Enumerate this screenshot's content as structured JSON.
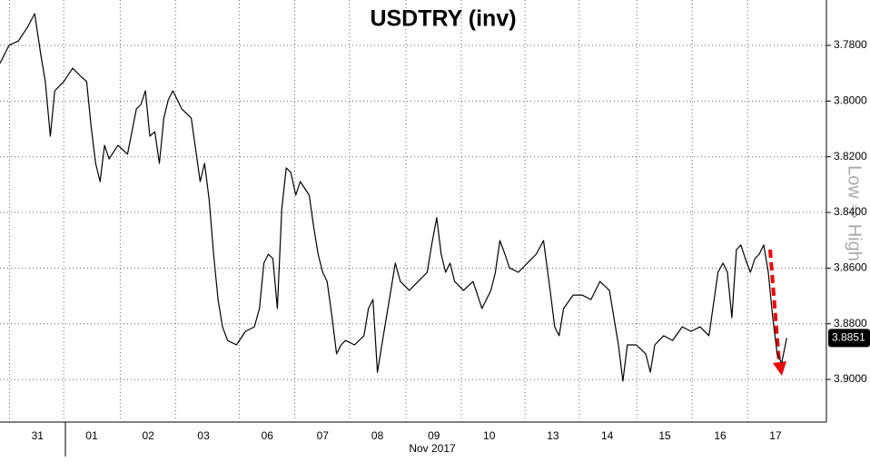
{
  "chart_data": {
    "type": "line",
    "title": "USDTRY (inv)",
    "axis_note": "Low ⇒ High",
    "x_caption": "Nov 2017",
    "invert_y": true,
    "grid": true,
    "color": "#000000",
    "ylim": [
      3.7637,
      3.9153
    ],
    "yticks": [
      {
        "value": 3.78,
        "label": "3.7800"
      },
      {
        "value": 3.8,
        "label": "3.8000"
      },
      {
        "value": 3.82,
        "label": "3.8200"
      },
      {
        "value": 3.84,
        "label": "3.8400"
      },
      {
        "value": 3.86,
        "label": "3.8600"
      },
      {
        "value": 3.88,
        "label": "3.8800"
      },
      {
        "value": 3.9,
        "label": "3.9000"
      }
    ],
    "xlim": [
      -0.18,
      14.6
    ],
    "xticks": [
      {
        "value": 0.49,
        "label": "31"
      },
      {
        "value": 1.46,
        "label": "01"
      },
      {
        "value": 2.47,
        "label": "02"
      },
      {
        "value": 3.46,
        "label": "03"
      },
      {
        "value": 4.6,
        "label": "06"
      },
      {
        "value": 5.59,
        "label": "07"
      },
      {
        "value": 6.57,
        "label": "08"
      },
      {
        "value": 7.58,
        "label": "09"
      },
      {
        "value": 8.57,
        "label": "10"
      },
      {
        "value": 9.71,
        "label": "13"
      },
      {
        "value": 10.68,
        "label": "14"
      },
      {
        "value": 11.71,
        "label": "15"
      },
      {
        "value": 12.7,
        "label": "16"
      },
      {
        "value": 13.69,
        "label": "17"
      }
    ],
    "last_price": 3.8851,
    "x": [
      -0.18,
      -0.02,
      0.15,
      0.31,
      0.44,
      0.55,
      0.63,
      0.72,
      0.8,
      0.96,
      1.12,
      1.28,
      1.37,
      1.45,
      1.53,
      1.61,
      1.69,
      1.77,
      1.93,
      2.1,
      2.26,
      2.34,
      2.42,
      2.5,
      2.59,
      2.67,
      2.75,
      2.83,
      2.91,
      3.07,
      3.24,
      3.4,
      3.48,
      3.56,
      3.64,
      3.72,
      3.8,
      3.89,
      4.05,
      4.21,
      4.37,
      4.46,
      4.54,
      4.62,
      4.7,
      4.78,
      4.86,
      4.94,
      5.02,
      5.11,
      5.19,
      5.35,
      5.43,
      5.51,
      5.59,
      5.67,
      5.76,
      5.84,
      5.92,
      6.0,
      6.16,
      6.33,
      6.41,
      6.49,
      6.57,
      6.65,
      6.73,
      6.81,
      6.89,
      6.98,
      7.14,
      7.3,
      7.46,
      7.54,
      7.63,
      7.71,
      7.79,
      7.87,
      7.95,
      8.11,
      8.28,
      8.44,
      8.6,
      8.68,
      8.76,
      8.85,
      8.93,
      9.09,
      9.25,
      9.41,
      9.54,
      9.66,
      9.74,
      9.82,
      9.9,
      10.07,
      10.23,
      10.39,
      10.55,
      10.72,
      10.8,
      10.88,
      10.96,
      11.04,
      11.2,
      11.37,
      11.45,
      11.53,
      11.69,
      11.85,
      12.02,
      12.18,
      12.34,
      12.5,
      12.66,
      12.75,
      12.83,
      12.91,
      12.99,
      13.07,
      13.15,
      13.24,
      13.32,
      13.4,
      13.48,
      13.56,
      13.64,
      13.72,
      13.8,
      13.89
    ],
    "values": [
      3.7865,
      3.78,
      3.7784,
      3.7735,
      3.7686,
      3.7833,
      3.793,
      3.8126,
      3.7963,
      3.793,
      3.7882,
      3.7914,
      3.793,
      3.8093,
      3.8224,
      3.8289,
      3.8159,
      3.8208,
      3.8159,
      3.8191,
      3.8028,
      3.8012,
      3.7963,
      3.8126,
      3.811,
      3.8224,
      3.8061,
      3.7996,
      3.7963,
      3.8028,
      3.8061,
      3.8289,
      3.8224,
      3.8354,
      3.855,
      3.8713,
      3.8811,
      3.886,
      3.8876,
      3.8827,
      3.8811,
      3.8745,
      3.8582,
      3.855,
      3.8566,
      3.8745,
      3.8387,
      3.824,
      3.8256,
      3.8338,
      3.8289,
      3.8338,
      3.8452,
      3.855,
      3.8615,
      3.8648,
      3.8778,
      3.8908,
      3.8876,
      3.886,
      3.8876,
      3.8843,
      3.8745,
      3.8713,
      3.8974,
      3.8876,
      3.8778,
      3.868,
      3.8582,
      3.8648,
      3.868,
      3.8648,
      3.8615,
      3.8517,
      3.8419,
      3.855,
      3.8615,
      3.8582,
      3.8648,
      3.868,
      3.8648,
      3.8745,
      3.868,
      3.8615,
      3.8501,
      3.855,
      3.8599,
      3.8615,
      3.8582,
      3.855,
      3.8501,
      3.868,
      3.8811,
      3.8843,
      3.8745,
      3.8697,
      3.8697,
      3.8713,
      3.8648,
      3.868,
      3.8778,
      3.8876,
      3.9006,
      3.8876,
      3.8876,
      3.8908,
      3.8974,
      3.8876,
      3.8843,
      3.886,
      3.8811,
      3.8827,
      3.8811,
      3.8843,
      3.8615,
      3.8582,
      3.8615,
      3.8778,
      3.8534,
      3.8517,
      3.8566,
      3.8615,
      3.8566,
      3.855,
      3.8517,
      3.8615,
      3.8778,
      3.8908,
      3.8941,
      3.8851
    ]
  }
}
